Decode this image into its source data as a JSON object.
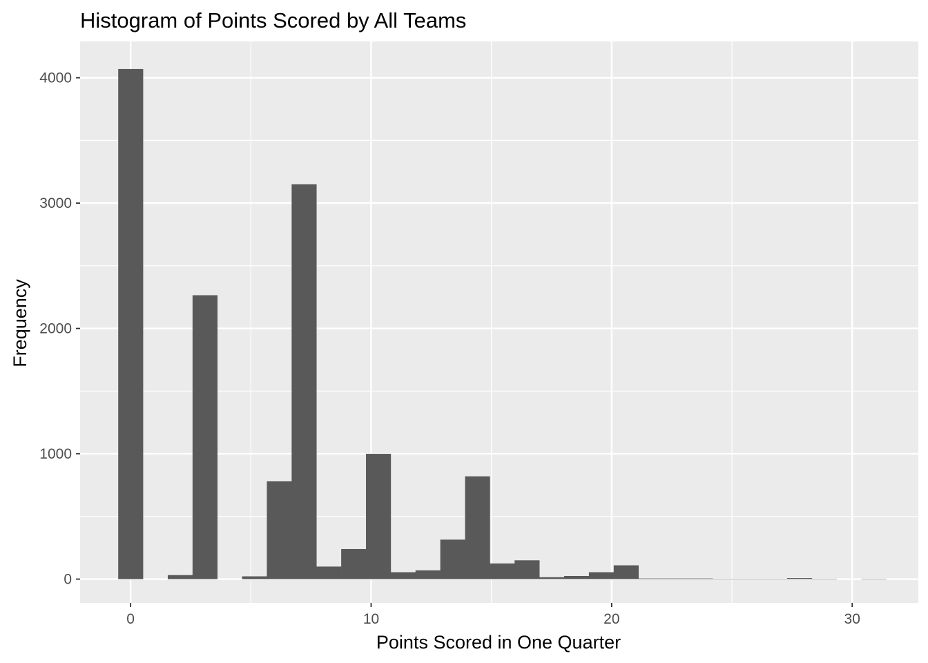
{
  "chart_data": {
    "type": "bar",
    "title": "Histogram of Points Scored by All Teams",
    "xlabel": "Points Scored in One Quarter",
    "ylabel": "Frequency",
    "binwidth": 1.03,
    "bin_start": -0.515,
    "values": [
      4070,
      0,
      32,
      2265,
      0,
      22,
      780,
      3150,
      100,
      240,
      1000,
      55,
      70,
      315,
      820,
      125,
      150,
      15,
      25,
      55,
      110,
      5,
      5,
      5,
      3,
      3,
      3,
      8,
      3,
      0,
      3
    ],
    "xlim": [
      -2.1,
      32.75
    ],
    "ylim": [
      -190,
      4290
    ],
    "x_ticks": [
      0,
      10,
      20,
      30
    ],
    "y_ticks": [
      0,
      1000,
      2000,
      3000,
      4000
    ],
    "x_tick_labels": [
      "0",
      "10",
      "20",
      "30"
    ],
    "y_tick_labels": [
      "0",
      "1000",
      "2000",
      "3000",
      "4000"
    ],
    "colors": {
      "panel": "#EBEBEB",
      "grid": "#FFFFFF",
      "bar": "#595959",
      "tick_text": "#4D4D4D",
      "tick_mark": "#333333"
    },
    "grid": true,
    "legend": "none"
  }
}
